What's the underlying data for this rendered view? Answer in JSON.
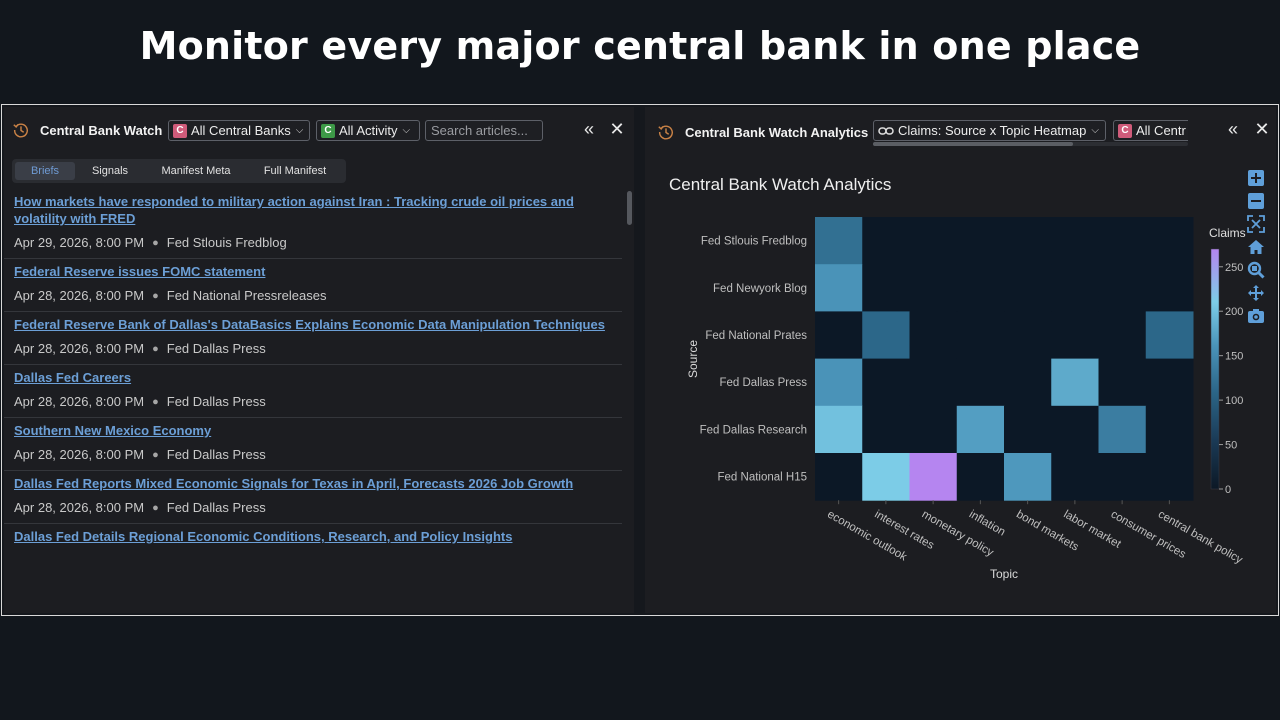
{
  "hero": {
    "title": "Monitor every major central bank in one place"
  },
  "left_panel": {
    "title": "Central Bank Watch",
    "bank_select": {
      "badge": "C",
      "value": "All Central Banks"
    },
    "activity_select": {
      "badge": "C",
      "value": "All Activity"
    },
    "search": {
      "placeholder": "Search articles..."
    },
    "collapse_label": "«",
    "close_label": "✕",
    "tabs": [
      {
        "label": "Briefs",
        "active": true
      },
      {
        "label": "Signals",
        "active": false
      },
      {
        "label": "Manifest Meta",
        "active": false
      },
      {
        "label": "Full Manifest",
        "active": false
      }
    ],
    "articles": [
      {
        "title": "How markets have responded to military action against Iran : Tracking crude oil prices and volatility with FRED",
        "date": "Apr 29, 2026, 8:00 PM",
        "source": "Fed Stlouis Fredblog"
      },
      {
        "title": "Federal Reserve issues FOMC statement",
        "date": "Apr 28, 2026, 8:00 PM",
        "source": "Fed National Pressreleases"
      },
      {
        "title": "Federal Reserve Bank of Dallas's DataBasics Explains Economic Data Manipulation Techniques",
        "date": "Apr 28, 2026, 8:00 PM",
        "source": "Fed Dallas Press"
      },
      {
        "title": "Dallas Fed Careers",
        "date": "Apr 28, 2026, 8:00 PM",
        "source": "Fed Dallas Press"
      },
      {
        "title": "Southern New Mexico Economy",
        "date": "Apr 28, 2026, 8:00 PM",
        "source": "Fed Dallas Press"
      },
      {
        "title": "Dallas Fed Reports Mixed Economic Signals for Texas in April, Forecasts 2026 Job Growth",
        "date": "Apr 28, 2026, 8:00 PM",
        "source": "Fed Dallas Press"
      },
      {
        "title": "Dallas Fed Details Regional Economic Conditions, Research, and Policy Insights",
        "date": "",
        "source": ""
      }
    ]
  },
  "right_panel": {
    "title": "Central Bank Watch Analytics",
    "view_select": {
      "value": "Claims: Source x Topic Heatmap"
    },
    "bank_select": {
      "badge": "C",
      "value": "All Centr"
    },
    "collapse_label": "«",
    "close_label": "✕",
    "chart_title": "Central Bank Watch Analytics",
    "modebar_icons": [
      "zoom-in-icon",
      "zoom-out-icon",
      "autoscale-icon",
      "home-icon",
      "zoom-box-icon",
      "pan-icon",
      "camera-icon"
    ]
  },
  "colors": {
    "accent_link": "#6c9fd6",
    "badge_red": "#d05b7a",
    "badge_green": "#3d9a47",
    "modebar": "#5f9fd9"
  },
  "chart_data": {
    "type": "heatmap",
    "title": "Central Bank Watch Analytics",
    "xlabel": "Topic",
    "ylabel": "Source",
    "x": [
      "economic outlook",
      "interest rates",
      "monetary policy",
      "inflation",
      "bond markets",
      "labor market",
      "consumer prices",
      "central bank policy"
    ],
    "y": [
      "Fed Stlouis Fredblog",
      "Fed Newyork Blog",
      "Fed National Prates",
      "Fed Dallas Press",
      "Fed Dallas Research",
      "Fed National H15"
    ],
    "z": [
      [
        120,
        0,
        0,
        0,
        0,
        0,
        0,
        0
      ],
      [
        160,
        0,
        0,
        0,
        0,
        0,
        0,
        0
      ],
      [
        0,
        110,
        0,
        0,
        0,
        0,
        0,
        110
      ],
      [
        160,
        0,
        0,
        0,
        0,
        180,
        0,
        0
      ],
      [
        200,
        0,
        0,
        170,
        0,
        0,
        135,
        0
      ],
      [
        0,
        210,
        270,
        0,
        165,
        0,
        0,
        0
      ]
    ],
    "colorbar": {
      "title": "Claims",
      "ticks": [
        0,
        50,
        100,
        150,
        200,
        250
      ],
      "range": [
        0,
        270
      ]
    }
  }
}
